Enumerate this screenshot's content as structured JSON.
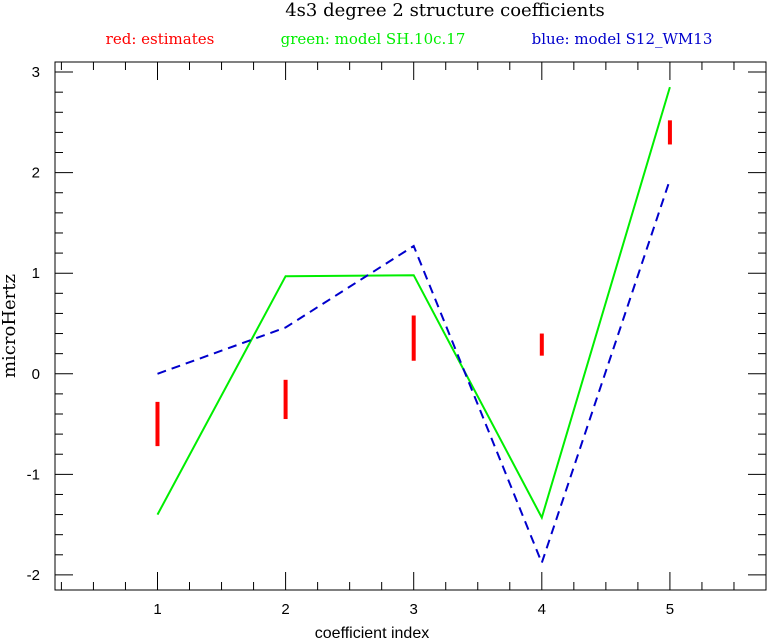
{
  "chart_data": {
    "type": "line",
    "title": "4s3 degree 2 structure coefficients",
    "legend": [
      {
        "label": "red: estimates",
        "color": "#ff0000"
      },
      {
        "label": "green: model SH.10c.17",
        "color": "#00ee00"
      },
      {
        "label": "blue: model S12_WM13",
        "color": "#0000cc"
      }
    ],
    "legend_placement": "top",
    "xlabel": "coefficient index",
    "ylabel": "microHertz",
    "xlim": [
      0.2,
      5.75
    ],
    "ylim": [
      -2.15,
      3.1
    ],
    "x_ticks": [
      1,
      2,
      3,
      4,
      5
    ],
    "y_ticks": [
      -2,
      -1,
      0,
      1,
      2,
      3
    ],
    "grid": false,
    "x": [
      1,
      2,
      3,
      4,
      5
    ],
    "series": [
      {
        "name": "green: model SH.10c.17",
        "color": "#00ee00",
        "style": "solid",
        "values": [
          -1.4,
          0.97,
          0.98,
          -1.43,
          2.85
        ]
      },
      {
        "name": "blue: model S12_WM13",
        "color": "#0000cc",
        "style": "dashed",
        "values": [
          0.0,
          0.46,
          1.27,
          -1.88,
          1.93
        ]
      }
    ],
    "estimates": {
      "color": "#ff0000",
      "style": "error-bar",
      "x": [
        1,
        2,
        3,
        4,
        5
      ],
      "low": [
        -0.72,
        -0.45,
        0.13,
        0.18,
        2.28
      ],
      "high": [
        -0.28,
        -0.06,
        0.58,
        0.4,
        2.52
      ]
    }
  }
}
